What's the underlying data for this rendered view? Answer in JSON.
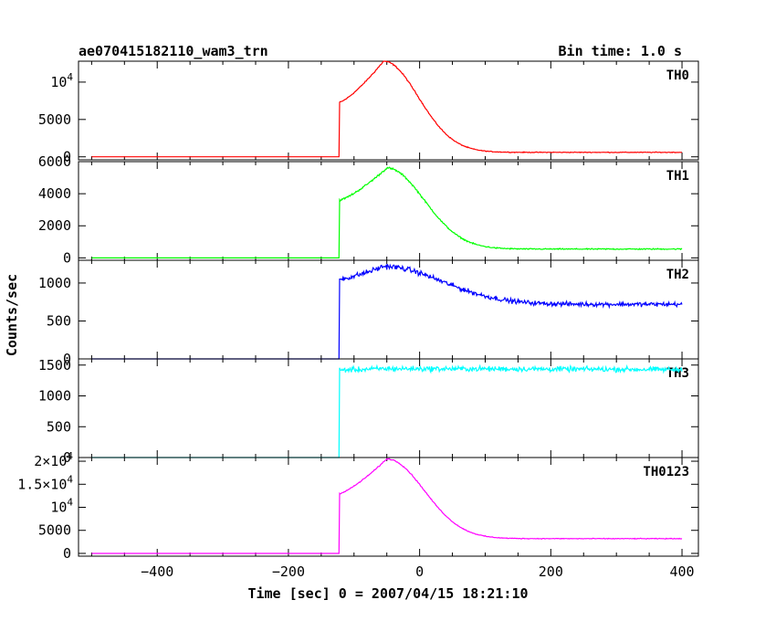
{
  "chart_data": {
    "type": "line",
    "title": "ae070415182110_wam3_trn",
    "subtitle": "Bin time: 1.0 s",
    "xlabel": "Time [sec] 0 = 2007/04/15 18:21:10",
    "ylabel": "Counts/sec",
    "xlim": [
      -520,
      425
    ],
    "xticks": [
      -400,
      -200,
      0,
      200,
      400
    ],
    "xtick_labels": [
      "−400",
      "−200",
      "0",
      "200",
      "400"
    ],
    "grid": false,
    "panels": [
      {
        "name": "TH0",
        "color": "#ff0000",
        "ylim": [
          -400,
          12800
        ],
        "yticks": [
          {
            "v": 0,
            "label": "0"
          },
          {
            "v": 5000,
            "label": "5000"
          },
          {
            "v": 10000,
            "label": "10",
            "sup": "4"
          }
        ],
        "series": {
          "baseline": 0,
          "onset": -122,
          "jump": 7300,
          "peak_x": -55,
          "peak": 12800,
          "decay_tau": 42,
          "tail": 600,
          "tail_start": 190,
          "noise": 120
        },
        "points": [
          [
            -500,
            0
          ],
          [
            -122,
            0
          ],
          [
            -120,
            7300
          ],
          [
            -100,
            8600
          ],
          [
            -80,
            10200
          ],
          [
            -60,
            12200
          ],
          [
            -50,
            12800
          ],
          [
            0,
            10000
          ],
          [
            50,
            5000
          ],
          [
            100,
            1800
          ],
          [
            150,
            700
          ],
          [
            200,
            600
          ],
          [
            400,
            600
          ]
        ]
      },
      {
        "name": "TH1",
        "color": "#00ff00",
        "ylim": [
          -150,
          6000
        ],
        "yticks": [
          {
            "v": 0,
            "label": "0"
          },
          {
            "v": 2000,
            "label": "2000"
          },
          {
            "v": 4000,
            "label": "4000"
          },
          {
            "v": 6000,
            "label": "6000"
          }
        ],
        "series": {
          "baseline": 0,
          "onset": -122,
          "jump": 3600,
          "peak_x": -50,
          "peak": 5600,
          "decay_tau": 45,
          "tail": 550,
          "tail_start": 190,
          "noise": 80
        },
        "points": [
          [
            -500,
            0
          ],
          [
            -122,
            0
          ],
          [
            -120,
            3600
          ],
          [
            -100,
            4100
          ],
          [
            -80,
            4700
          ],
          [
            -60,
            5400
          ],
          [
            -50,
            5600
          ],
          [
            0,
            4200
          ],
          [
            50,
            2300
          ],
          [
            100,
            900
          ],
          [
            150,
            600
          ],
          [
            200,
            550
          ],
          [
            400,
            550
          ]
        ]
      },
      {
        "name": "TH2",
        "color": "#0000ff",
        "ylim": [
          0,
          1300
        ],
        "yticks": [
          {
            "v": 0,
            "label": "0"
          },
          {
            "v": 500,
            "label": "500"
          },
          {
            "v": 1000,
            "label": "1000"
          }
        ],
        "series": {
          "baseline": 0,
          "onset": -122,
          "jump": 1050,
          "peak_x": -55,
          "peak": 1220,
          "decay_tau": 70,
          "tail": 720,
          "tail_start": 150,
          "noise": 45
        },
        "points": [
          [
            -500,
            0
          ],
          [
            -122,
            0
          ],
          [
            -120,
            1050
          ],
          [
            -80,
            1130
          ],
          [
            -55,
            1220
          ],
          [
            0,
            1020
          ],
          [
            50,
            880
          ],
          [
            100,
            780
          ],
          [
            150,
            730
          ],
          [
            400,
            720
          ]
        ]
      },
      {
        "name": "TH3",
        "color": "#00ffff",
        "ylim": [
          0,
          1600
        ],
        "yticks": [
          {
            "v": 0,
            "label": "0"
          },
          {
            "v": 500,
            "label": "500"
          },
          {
            "v": 1000,
            "label": "1000"
          },
          {
            "v": 1500,
            "label": "1500"
          }
        ],
        "series": {
          "baseline": 0,
          "onset": -122,
          "jump": 1420,
          "peak_x": -60,
          "peak": 1440,
          "decay_tau": 400,
          "tail": 1400,
          "tail_start": 0,
          "noise": 55
        },
        "points": [
          [
            -500,
            0
          ],
          [
            -122,
            0
          ],
          [
            -120,
            1420
          ],
          [
            0,
            1430
          ],
          [
            200,
            1410
          ],
          [
            400,
            1400
          ]
        ]
      },
      {
        "name": "TH0123",
        "color": "#ff00ff",
        "ylim": [
          -600,
          20800
        ],
        "yticks": [
          {
            "v": 0,
            "label": "0"
          },
          {
            "v": 5000,
            "label": "5000"
          },
          {
            "v": 10000,
            "label": "10",
            "sup": "4"
          },
          {
            "v": 15000,
            "label": "1.5×10",
            "sup": "4"
          },
          {
            "v": 20000,
            "label": "2×10",
            "sup": "4"
          }
        ],
        "series": {
          "baseline": 0,
          "onset": -122,
          "jump": 13000,
          "peak_x": -50,
          "peak": 20500,
          "decay_tau": 45,
          "tail": 3200,
          "tail_start": 190,
          "noise": 160
        },
        "points": [
          [
            -500,
            0
          ],
          [
            -122,
            0
          ],
          [
            -120,
            13000
          ],
          [
            -100,
            14200
          ],
          [
            -80,
            16500
          ],
          [
            -60,
            19500
          ],
          [
            -50,
            20500
          ],
          [
            0,
            16000
          ],
          [
            50,
            9000
          ],
          [
            100,
            5000
          ],
          [
            150,
            3500
          ],
          [
            200,
            3200
          ],
          [
            400,
            3200
          ]
        ]
      }
    ]
  }
}
